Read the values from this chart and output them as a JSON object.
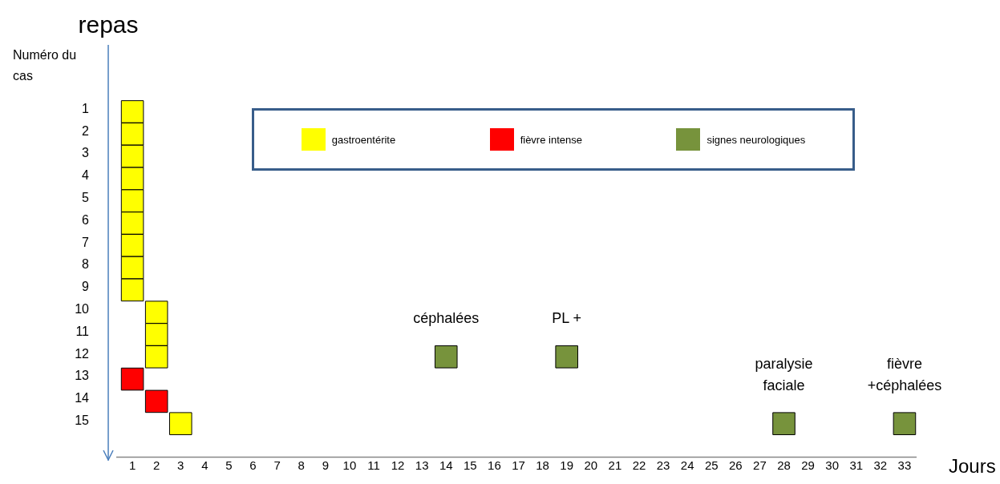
{
  "chart_data": {
    "type": "scatter",
    "xlabel": "Jours",
    "ylabel": "Numéro du cas",
    "xlim": [
      0,
      33.5
    ],
    "xticks": [
      1,
      2,
      3,
      4,
      5,
      6,
      7,
      8,
      9,
      10,
      11,
      12,
      13,
      14,
      15,
      16,
      17,
      18,
      19,
      20,
      21,
      22,
      23,
      24,
      25,
      26,
      27,
      28,
      29,
      30,
      31,
      32,
      33
    ],
    "ylim": [
      16.5,
      -2
    ],
    "yticks": [
      1,
      2,
      3,
      4,
      5,
      6,
      7,
      8,
      9,
      10,
      11,
      12,
      13,
      14,
      15
    ],
    "grid": false,
    "legend": "top",
    "marker": "square",
    "series": [
      {
        "name": "gastroentérite",
        "color": "#ffff00",
        "x": [
          1,
          1,
          1,
          1,
          1,
          1,
          1,
          1,
          1,
          2,
          2,
          2,
          3
        ],
        "values": [
          1,
          2,
          3,
          4,
          5,
          6,
          7,
          8,
          9,
          10,
          11,
          12,
          15
        ]
      },
      {
        "name": "fièvre intense",
        "color": "#ff0000",
        "x": [
          1,
          2
        ],
        "values": [
          13,
          14
        ]
      },
      {
        "name": "signes neurologiques",
        "color": "#77933c",
        "x": [
          14,
          19,
          28,
          33
        ],
        "values": [
          12,
          12,
          15,
          15
        ]
      }
    ],
    "annotations": [
      "repas",
      {
        "text": "céphalées",
        "x": 14,
        "y": 12
      },
      {
        "text": "PL +",
        "x": 19,
        "y": 12
      },
      {
        "text": "paralysie\nfaciale",
        "x": 28,
        "y": 15
      },
      {
        "text": "fièvre\n+céphalées",
        "x": 33,
        "y": 15
      }
    ]
  }
}
